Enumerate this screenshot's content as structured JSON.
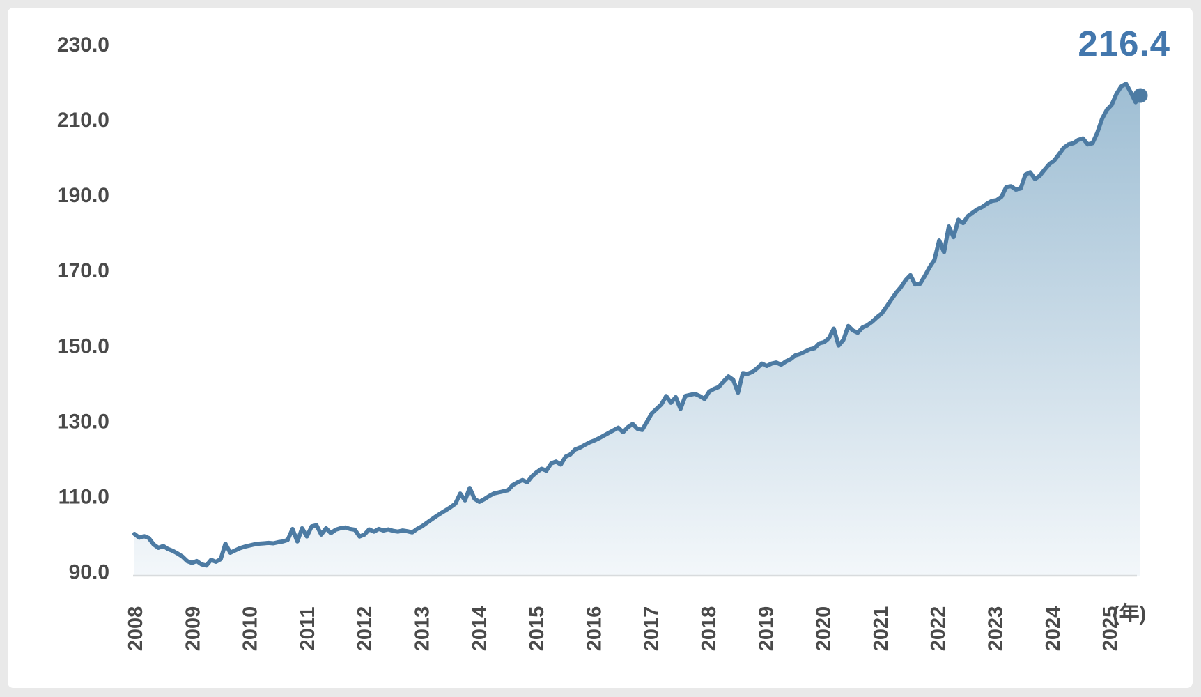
{
  "chart_data": {
    "type": "area",
    "title": "",
    "frequency": "monthly",
    "x_start": "2008-01",
    "x_end": "2025-07",
    "unit_label": "(年)",
    "end_label": "216.4",
    "latest_value": 216.4,
    "ylim": [
      90,
      230
    ],
    "yticks": [
      90,
      110,
      130,
      150,
      170,
      190,
      210,
      230
    ],
    "ytick_labels": [
      "90.0",
      "110.0",
      "130.0",
      "150.0",
      "170.0",
      "190.0",
      "210.0",
      "230.0"
    ],
    "categories_years": [
      2008,
      2009,
      2010,
      2011,
      2012,
      2013,
      2014,
      2015,
      2016,
      2017,
      2018,
      2019,
      2020,
      2021,
      2022,
      2023,
      2024,
      2025
    ],
    "grid": "off",
    "legend": "none",
    "values": [
      100.0,
      99.0,
      99.4,
      98.9,
      97.2,
      96.3,
      96.8,
      96.0,
      95.5,
      94.8,
      94.0,
      92.8,
      92.3,
      92.8,
      91.9,
      91.6,
      93.1,
      92.6,
      93.3,
      97.4,
      95.0,
      95.6,
      96.2,
      96.6,
      96.9,
      97.2,
      97.4,
      97.5,
      97.6,
      97.5,
      97.8,
      98.0,
      98.4,
      101.3,
      98.0,
      101.5,
      99.3,
      102.0,
      102.3,
      99.8,
      101.5,
      100.2,
      101.1,
      101.5,
      101.7,
      101.3,
      101.1,
      99.3,
      99.8,
      101.2,
      100.6,
      101.3,
      100.9,
      101.2,
      100.8,
      100.6,
      100.9,
      100.7,
      100.4,
      101.3,
      102.0,
      102.9,
      103.8,
      104.7,
      105.5,
      106.3,
      107.1,
      108.0,
      110.7,
      108.9,
      112.2,
      109.3,
      108.5,
      109.2,
      110.0,
      110.7,
      111.0,
      111.3,
      111.6,
      113.0,
      113.7,
      114.3,
      113.7,
      115.3,
      116.4,
      117.3,
      116.8,
      118.7,
      119.2,
      118.4,
      120.5,
      121.1,
      122.4,
      122.9,
      123.6,
      124.3,
      124.8,
      125.4,
      126.1,
      126.8,
      127.5,
      128.2,
      127.0,
      128.3,
      129.2,
      127.9,
      127.6,
      129.8,
      132.0,
      133.2,
      134.4,
      136.6,
      134.8,
      136.3,
      133.2,
      136.6,
      136.9,
      137.2,
      136.6,
      135.8,
      137.8,
      138.5,
      139.0,
      140.5,
      141.8,
      140.9,
      137.5,
      142.7,
      142.5,
      143.0,
      144.0,
      145.2,
      144.6,
      145.2,
      145.5,
      144.9,
      145.8,
      146.4,
      147.4,
      147.8,
      148.4,
      149.0,
      149.3,
      150.6,
      150.9,
      152.0,
      154.5,
      150.0,
      151.5,
      155.2,
      154.0,
      153.4,
      154.8,
      155.4,
      156.3,
      157.5,
      158.5,
      160.3,
      162.2,
      164.0,
      165.5,
      167.4,
      168.7,
      166.2,
      166.4,
      168.5,
      170.8,
      172.7,
      177.9,
      174.8,
      181.6,
      178.8,
      183.4,
      182.5,
      184.4,
      185.3,
      186.2,
      186.8,
      187.7,
      188.4,
      188.6,
      189.5,
      192.1,
      192.3,
      191.4,
      191.7,
      195.4,
      196.0,
      194.2,
      195.1,
      196.7,
      198.2,
      199.1,
      200.8,
      202.5,
      203.4,
      203.7,
      204.6,
      205.0,
      203.4,
      203.7,
      206.5,
      210.2,
      212.6,
      213.9,
      216.8,
      218.8,
      219.5,
      217.2,
      214.6,
      216.4
    ],
    "colors": {
      "line": "#4d7ba3",
      "marker": "#4d7ba3",
      "end_label_text": "#4377ad",
      "area_top": "#9dbdd3",
      "area_bottom": "#f3f7fa",
      "axis_text": "#4a4a4a",
      "axis_line": "#d8dbdd",
      "card_background": "#ffffff",
      "page_border": "#e9e9e9"
    }
  }
}
